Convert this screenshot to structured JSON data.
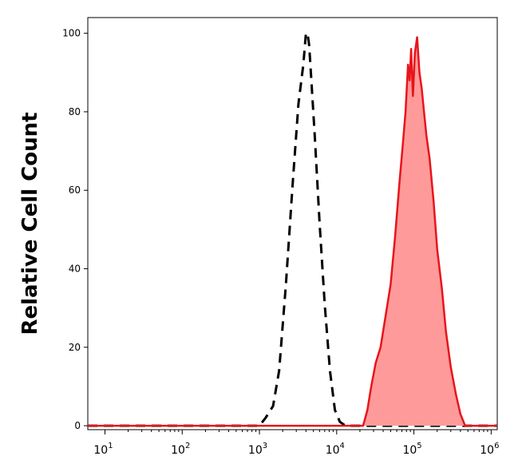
{
  "chart_data": {
    "type": "area",
    "xlabel": "",
    "ylabel": "Relative Cell Count",
    "x_scale": "log",
    "xlim": [
      6,
      1200000
    ],
    "ylim": [
      -1,
      104
    ],
    "y_ticks": [
      {
        "value": 0,
        "label": "0"
      },
      {
        "value": 20,
        "label": "20"
      },
      {
        "value": 40,
        "label": "40"
      },
      {
        "value": 60,
        "label": "60"
      },
      {
        "value": 80,
        "label": "80"
      },
      {
        "value": 100,
        "label": "100"
      }
    ],
    "x_ticks": [
      {
        "value": 10,
        "base": "10",
        "exp": "1"
      },
      {
        "value": 100,
        "base": "10",
        "exp": "2"
      },
      {
        "value": 1000,
        "base": "10",
        "exp": "3"
      },
      {
        "value": 10000,
        "base": "10",
        "exp": "4"
      },
      {
        "value": 100000,
        "base": "10",
        "exp": "5"
      },
      {
        "value": 1000000,
        "base": "10",
        "exp": "6"
      }
    ],
    "series": [
      {
        "style": "dashed-outline",
        "color": "#000000",
        "x": [
          6,
          100,
          1000,
          1200,
          1500,
          1800,
          2200,
          2700,
          3200,
          3700,
          4000,
          4200,
          4400,
          4700,
          5200,
          6000,
          7000,
          8200,
          9500,
          11000,
          13000,
          20000,
          100000,
          1200000
        ],
        "y": [
          0,
          0,
          0,
          2,
          5,
          14,
          36,
          62,
          82,
          92,
          100,
          100,
          97,
          88,
          74,
          52,
          31,
          14,
          4,
          1,
          0,
          0,
          0,
          0
        ]
      },
      {
        "style": "filled",
        "color": "#e8141b",
        "fill": "#ff9a9a",
        "x": [
          6,
          100,
          1000,
          10000,
          22000,
          25000,
          28000,
          32000,
          37000,
          43000,
          50000,
          57000,
          65000,
          72000,
          78000,
          84000,
          88000,
          92000,
          97000,
          103000,
          110000,
          118000,
          126000,
          135000,
          145000,
          160000,
          180000,
          200000,
          230000,
          260000,
          300000,
          350000,
          400000,
          460000,
          600000,
          1200000
        ],
        "y": [
          0,
          0,
          0,
          0,
          0,
          4,
          10,
          16,
          20,
          28,
          36,
          48,
          62,
          72,
          80,
          92,
          88,
          96,
          84,
          95,
          99,
          90,
          86,
          80,
          74,
          68,
          57,
          45,
          35,
          24,
          15,
          8,
          3,
          0,
          0,
          0
        ]
      }
    ]
  }
}
